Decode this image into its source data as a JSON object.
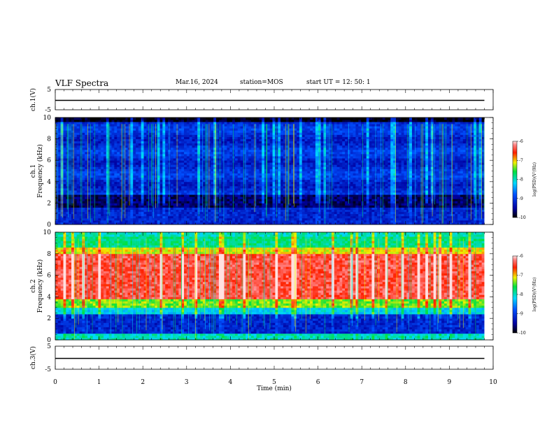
{
  "header": {
    "title": "VLF Spectra",
    "date": "Mar.16, 2024",
    "station": "station=MOS",
    "start": "start  UT  =   12: 50: 1"
  },
  "chart_data": [
    {
      "type": "line",
      "panel": "ch1-voltage",
      "ylabel": "ch.1(V)",
      "ylim": [
        -5,
        5
      ],
      "y_ticks": [
        "5",
        "-5"
      ],
      "series": [
        {
          "x": [
            0,
            9.8
          ],
          "values": [
            0,
            0
          ]
        }
      ]
    },
    {
      "type": "heatmap",
      "panel": "ch1-spectrogram",
      "ylabel": "ch.1\nFrequency (kHz)",
      "ylim": [
        0,
        10
      ],
      "y_ticks": [
        "0",
        "2",
        "4",
        "6",
        "8",
        "10"
      ],
      "xlim": [
        0,
        10
      ],
      "data_end_min": 9.8,
      "colorbar": {
        "label": "log(PSD)(V²/Hz)",
        "range": [
          -10,
          -6
        ],
        "ticks": [
          "-6",
          "-7",
          "-8",
          "-9",
          "-10"
        ]
      }
    },
    {
      "type": "heatmap",
      "panel": "ch2-spectrogram",
      "ylabel": "ch.2\nFrequency (kHz)",
      "ylim": [
        0,
        10
      ],
      "y_ticks": [
        "0",
        "2",
        "4",
        "6",
        "8",
        "10"
      ],
      "xlim": [
        0,
        10
      ],
      "data_end_min": 9.8,
      "colorbar": {
        "label": "log(PSD)(V²/Hz)",
        "range": [
          -10,
          -6
        ],
        "ticks": [
          "-6",
          "-7",
          "-8",
          "-9",
          "-10"
        ]
      }
    },
    {
      "type": "line",
      "panel": "ch3-voltage",
      "ylabel": "ch.3(V)",
      "ylim": [
        -5,
        5
      ],
      "y_ticks": [
        "5",
        "-5"
      ],
      "series": [
        {
          "x": [
            0,
            9.8
          ],
          "values": [
            0,
            0
          ]
        }
      ]
    }
  ],
  "x_axis": {
    "label": "Time (min)",
    "ticks": [
      "0",
      "1",
      "2",
      "3",
      "4",
      "5",
      "6",
      "7",
      "8",
      "9",
      "10"
    ]
  }
}
